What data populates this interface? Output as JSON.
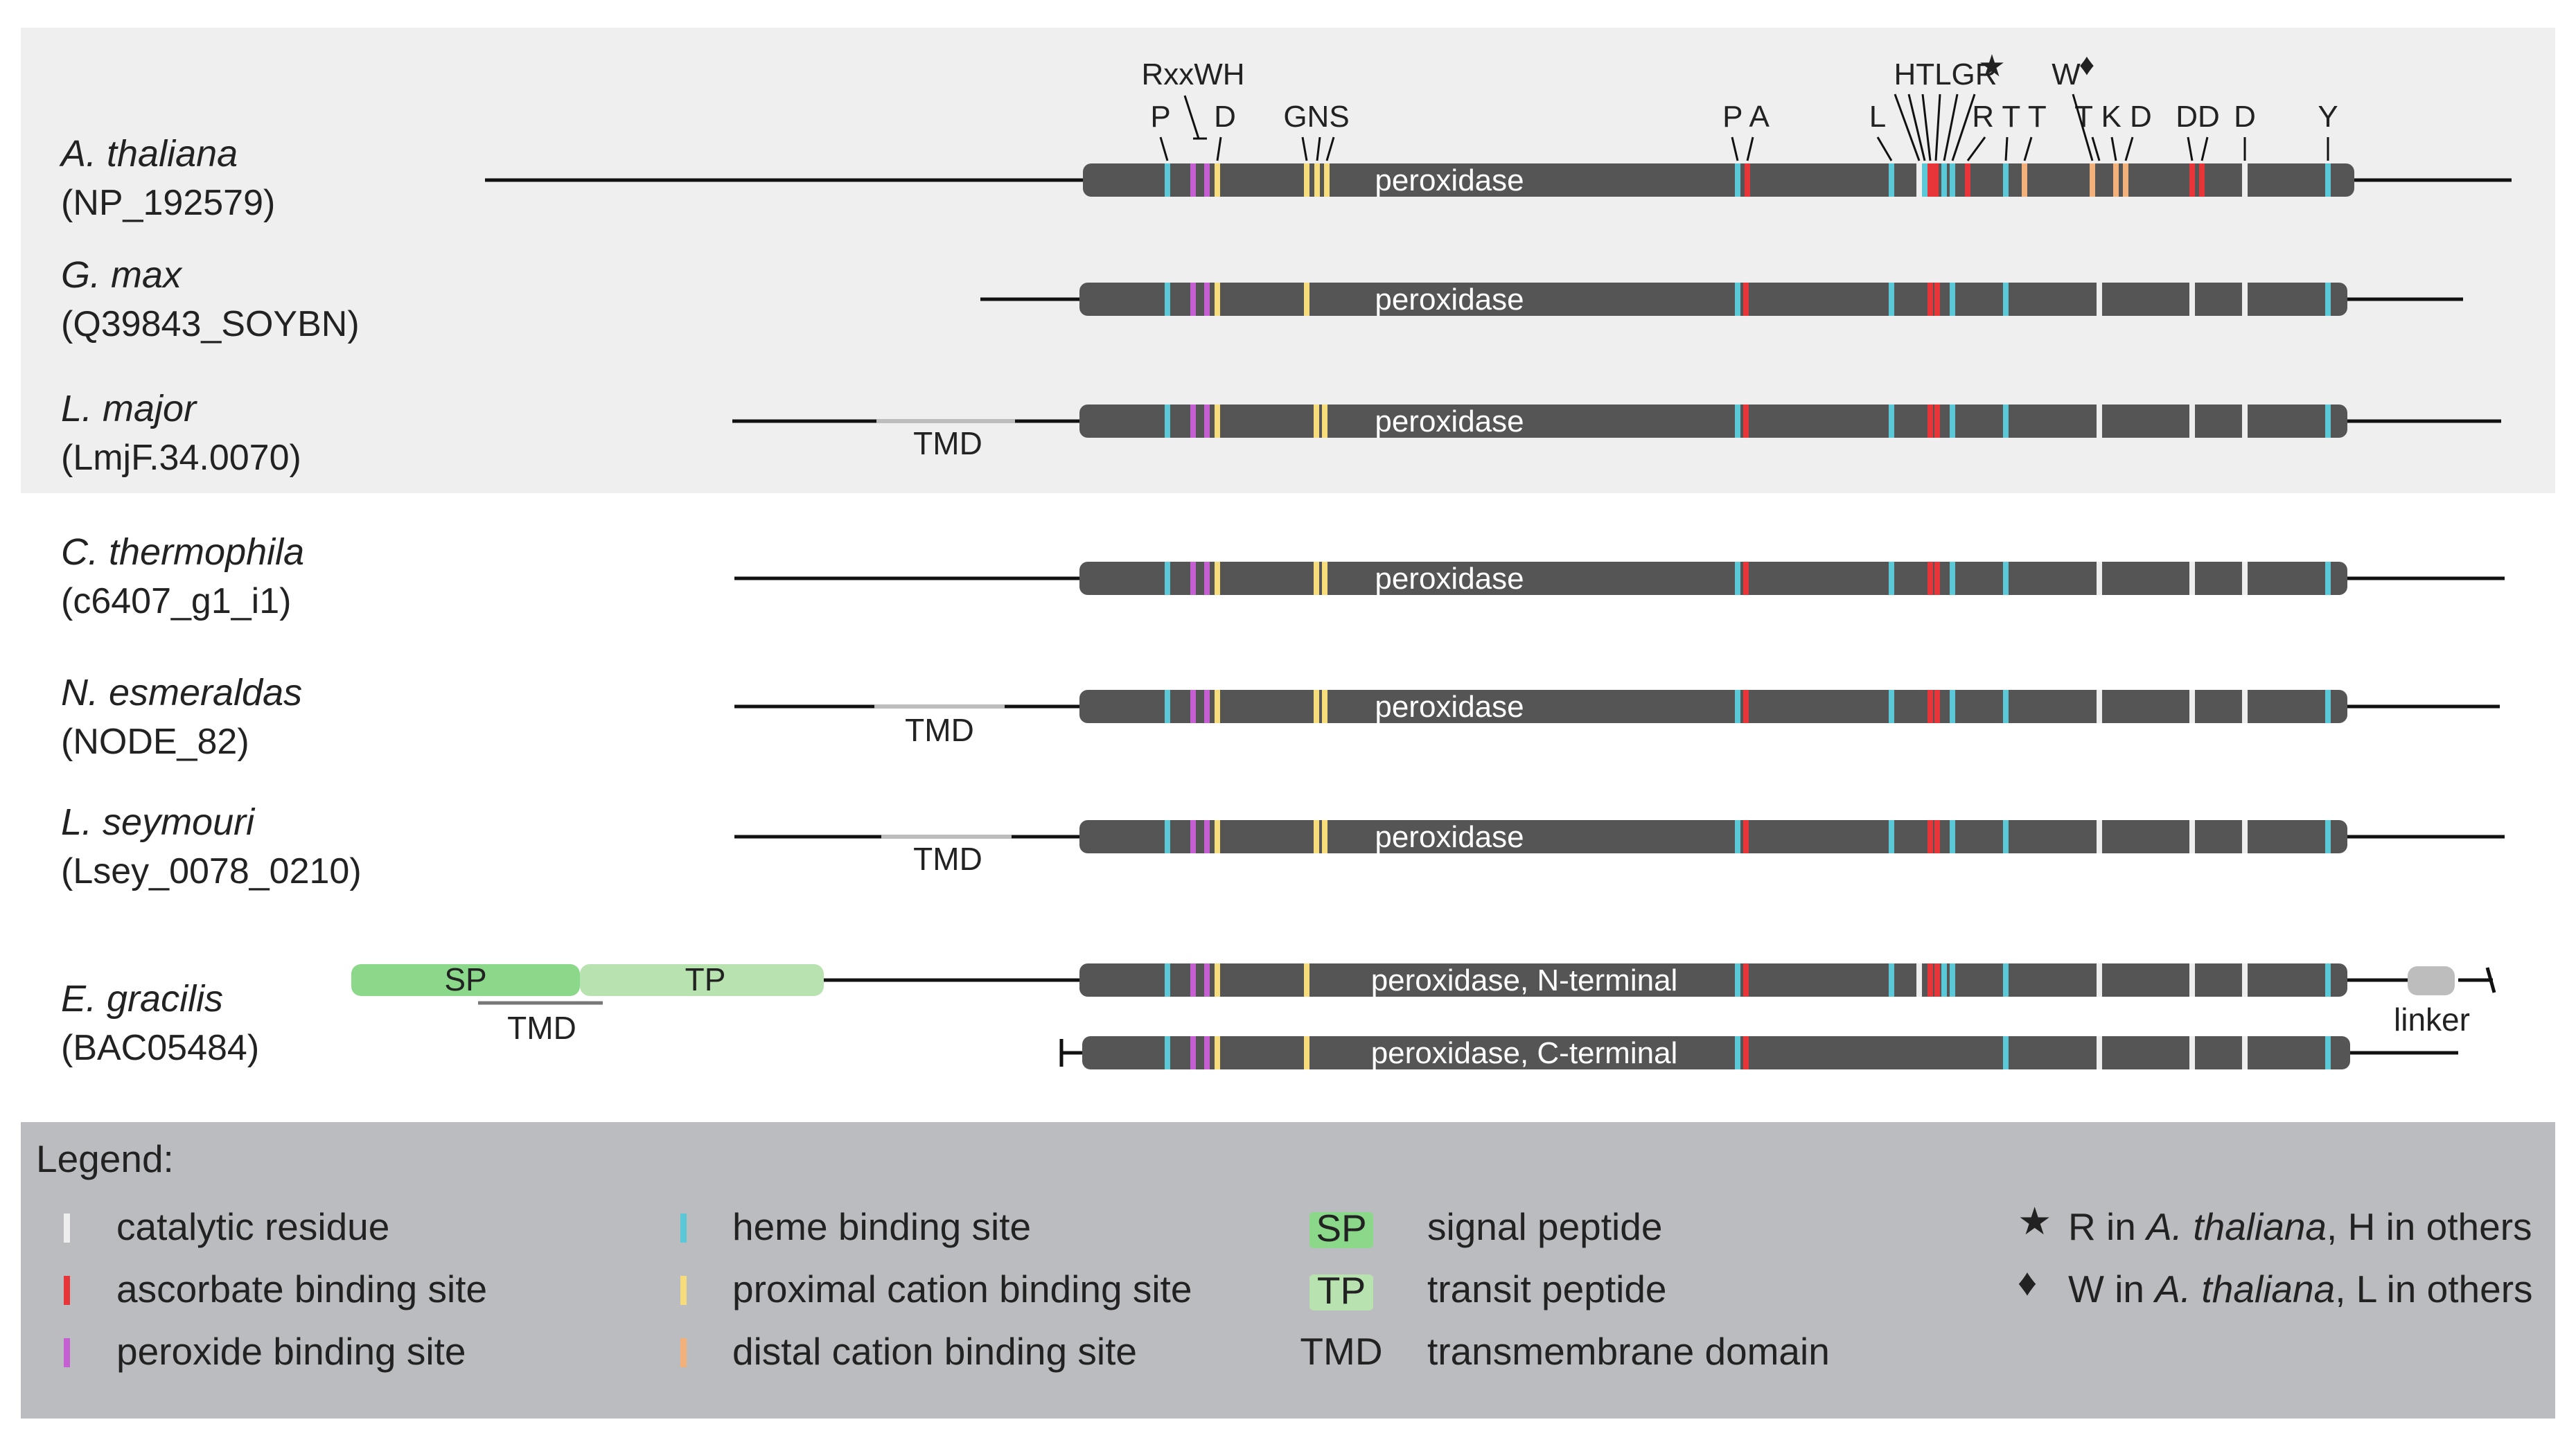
{
  "sequences": [
    {
      "species": "A. thaliana",
      "accession": "(NP_192579)",
      "domain": "peroxidase"
    },
    {
      "species": "G. max",
      "accession": "(Q39843_SOYBN)",
      "domain": "peroxidase"
    },
    {
      "species": "L. major",
      "accession": "(LmjF.34.0070)",
      "domain": "peroxidase",
      "tmd": "TMD"
    },
    {
      "species": "C. thermophila",
      "accession": "(c6407_g1_i1)",
      "domain": "peroxidase"
    },
    {
      "species": "N. esmeraldas",
      "accession": "(NODE_82)",
      "domain": "peroxidase",
      "tmd": "TMD"
    },
    {
      "species": "L. seymouri",
      "accession": "(Lsey_0078_0210)",
      "domain": "peroxidase",
      "tmd": "TMD"
    },
    {
      "species": "E. gracilis",
      "accession": "(BAC05484)",
      "domain_n": "peroxidase, N-terminal",
      "domain_c": "peroxidase, C-terminal",
      "sp": "SP",
      "tp": "TP",
      "tmd": "TMD",
      "linker": "linker"
    }
  ],
  "residue_labels": {
    "rxxwh": "RxxWH",
    "p1": "P",
    "d1": "D",
    "gns": "GNS",
    "pa": "P A",
    "htlgr": "HTLGR",
    "star": "★",
    "l": "L",
    "rtt": "R T  T",
    "w": "W",
    "diamond": "♦",
    "tkd": "T K D",
    "dd": "DD",
    "d2": "D",
    "y": "Y"
  },
  "legend": {
    "title": "Legend:",
    "col1": [
      {
        "label": "catalytic residue",
        "color": "#eeeeee"
      },
      {
        "label": "ascorbate binding site",
        "color": "#e8353a"
      },
      {
        "label": "peroxide binding site",
        "color": "#c65fd1"
      }
    ],
    "col2": [
      {
        "label": "heme binding site",
        "color": "#5bc8d8"
      },
      {
        "label": "proximal cation binding site",
        "color": "#f6dc7a"
      },
      {
        "label": "distal cation binding site",
        "color": "#f2b07a"
      }
    ],
    "col3": [
      {
        "key": "SP",
        "label": "signal peptide",
        "color": "#8bd88b"
      },
      {
        "key": "TP",
        "label": "transit peptide",
        "color": "#b8e3b0"
      },
      {
        "key": "TMD",
        "label": "transmembrane domain"
      }
    ],
    "col4": [
      {
        "symbol": "★",
        "pre": "R in ",
        "species": "A. thaliana",
        "post": ", H in others"
      },
      {
        "symbol": "♦",
        "pre": "W in ",
        "species": "A. thaliana",
        "post": ", L in others"
      }
    ]
  },
  "colors": {
    "bar": "#555555",
    "panel": "#efefef",
    "legend_bg": "#bbbcbf",
    "catalytic": "#eeeeee",
    "ascorbate": "#e8353a",
    "peroxide": "#c65fd1",
    "heme": "#5bc8d8",
    "proximal": "#f6dc7a",
    "distal": "#f2b07a"
  }
}
